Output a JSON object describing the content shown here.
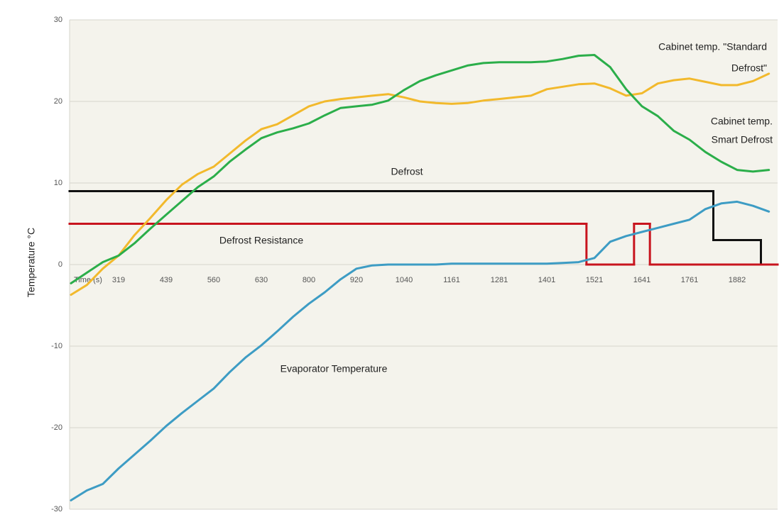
{
  "chart_data": {
    "type": "line",
    "ylabel": "Temperature °C",
    "ylim": [
      -30,
      30
    ],
    "yticks": [
      -30,
      -20,
      -10,
      0,
      10,
      20,
      30
    ],
    "grid": true,
    "categories": [
      "Time (s)",
      null,
      null,
      "319",
      null,
      null,
      "439",
      null,
      null,
      "560",
      null,
      null,
      "630",
      null,
      null,
      "800",
      null,
      null,
      "920",
      null,
      null,
      "1040",
      null,
      null,
      "1161",
      null,
      null,
      "1281",
      null,
      null,
      "1401",
      null,
      null,
      "1521",
      null,
      null,
      "1641",
      null,
      null,
      "1761",
      null,
      null,
      "1882",
      null,
      null
    ],
    "series": [
      {
        "color": "#111111",
        "step": true,
        "values": [
          9,
          9,
          9,
          9,
          9,
          9,
          9,
          9,
          9,
          9,
          9,
          9,
          9,
          9,
          9,
          9,
          9,
          9,
          9,
          9,
          9,
          9,
          9,
          9,
          9,
          9,
          9,
          9,
          9,
          9,
          9,
          9,
          9,
          9,
          9,
          9,
          9,
          9,
          9,
          9,
          9,
          3,
          3,
          3,
          0
        ]
      },
      {
        "color": "#c8141e",
        "step": true,
        "values": [
          5,
          5,
          5,
          5,
          5,
          5,
          5,
          5,
          5,
          5,
          5,
          5,
          5,
          5,
          5,
          5,
          5,
          5,
          5,
          5,
          5,
          5,
          5,
          5,
          5,
          5,
          5,
          5,
          5,
          5,
          5,
          5,
          5,
          0,
          0,
          0,
          5,
          0,
          0,
          0,
          0,
          0,
          0,
          0,
          0
        ]
      },
      {
        "color": "#3d9cc4",
        "step": false,
        "values": [
          -28.9,
          -27.7,
          -26.9,
          -25,
          -23.3,
          -21.6,
          -19.8,
          -18.2,
          -16.7,
          -15.2,
          -13.2,
          -11.4,
          -9.9,
          -8.2,
          -6.4,
          -4.8,
          -3.4,
          -1.8,
          -0.5,
          -0.1,
          0,
          0,
          0,
          0,
          0.1,
          0.1,
          0.1,
          0.1,
          0.1,
          0.1,
          0.1,
          0.2,
          0.3,
          0.8,
          2.8,
          3.5,
          4,
          4.5,
          5,
          5.5,
          6.8,
          7.5,
          7.7,
          7.2,
          6.5
        ]
      },
      {
        "color": "#f2b92c",
        "step": false,
        "values": [
          -3.7,
          -2.5,
          -0.5,
          1.1,
          3.6,
          5.7,
          7.9,
          9.8,
          11.1,
          12,
          13.6,
          15.2,
          16.6,
          17.2,
          18.3,
          19.4,
          20,
          20.3,
          20.5,
          20.7,
          20.9,
          20.5,
          20,
          19.8,
          19.7,
          19.8,
          20.1,
          20.3,
          20.5,
          20.7,
          21.5,
          21.8,
          22.1,
          22.2,
          21.6,
          20.7,
          21,
          22.2,
          22.6,
          22.8,
          22.4,
          22,
          22,
          22.5,
          23.4
        ]
      },
      {
        "color": "#2bae4a",
        "step": false,
        "values": [
          -2.3,
          -1,
          0.3,
          1.1,
          2.6,
          4.4,
          6.1,
          7.8,
          9.5,
          10.8,
          12.6,
          14.1,
          15.5,
          16.2,
          16.7,
          17.3,
          18.3,
          19.2,
          19.4,
          19.6,
          20.1,
          21.4,
          22.5,
          23.2,
          23.8,
          24.4,
          24.7,
          24.8,
          24.8,
          24.8,
          24.9,
          25.2,
          25.6,
          25.7,
          24.2,
          21.5,
          19.4,
          18.2,
          16.4,
          15.3,
          13.8,
          12.6,
          11.6,
          11.4,
          11.6
        ]
      }
    ],
    "annotations": [
      "Cabinet temp. \"Standard",
      "Defrost\"",
      "Cabinet temp.",
      "Smart Defrost",
      "Defrost",
      "Defrost Resistance",
      "Evaporator Temperature"
    ]
  }
}
